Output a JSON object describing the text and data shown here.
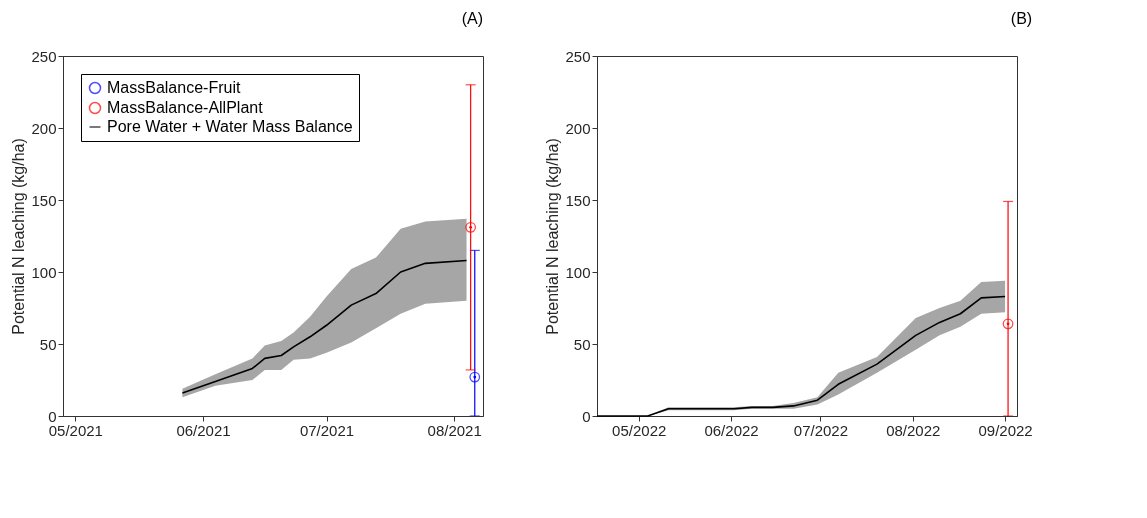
{
  "chart_data": [
    {
      "type": "line",
      "title": "(A)",
      "ylabel": "Potential N leaching (kg/ha)",
      "xlim": [
        "2021-04-28",
        "2021-08-08"
      ],
      "ylim": [
        0,
        250
      ],
      "yticks": [
        0,
        50,
        100,
        150,
        200,
        250
      ],
      "xticks": [
        {
          "value": "2021-05-01",
          "label": "05/2021"
        },
        {
          "value": "2021-06-01",
          "label": "06/2021"
        },
        {
          "value": "2021-07-01",
          "label": "07/2021"
        },
        {
          "value": "2021-08-01",
          "label": "08/2021"
        }
      ],
      "legend": "top left",
      "grid": false,
      "series": [
        {
          "name": "MassBalance-Fruit",
          "type": "scatter",
          "marker": "circle",
          "color": "#0000ff",
          "x": [
            "2021-08-06"
          ],
          "values": [
            27
          ],
          "errors": [
            [
              0,
              115
            ]
          ]
        },
        {
          "name": "MassBalance-AllPlant",
          "type": "scatter",
          "marker": "circle",
          "color": "#ff0000",
          "x": [
            "2021-08-05"
          ],
          "values": [
            131
          ],
          "errors": [
            [
              32,
              230
            ]
          ]
        },
        {
          "name": "Pore Water + Water Mass Balance",
          "color": "#000000",
          "x": [
            "2021-05-27",
            "2021-06-04",
            "2021-06-13",
            "2021-06-16",
            "2021-06-20",
            "2021-06-23",
            "2021-06-27",
            "2021-07-01",
            "2021-07-07",
            "2021-07-13",
            "2021-07-19",
            "2021-07-25",
            "2021-08-04"
          ],
          "values": [
            16,
            24,
            33,
            40,
            42,
            48,
            55,
            63,
            77,
            85,
            100,
            106,
            108
          ],
          "lower": [
            13,
            21,
            25,
            32,
            32,
            39,
            40,
            44,
            51,
            61,
            71,
            78,
            80
          ],
          "upper": [
            19,
            29,
            40,
            49,
            52,
            58,
            69,
            83,
            102,
            110,
            130,
            135,
            137
          ]
        }
      ]
    },
    {
      "type": "line",
      "title": "(B)",
      "ylabel": "Potential N leaching (kg/ha)",
      "xlim": [
        "2022-04-17",
        "2022-09-05"
      ],
      "ylim": [
        0,
        250
      ],
      "yticks": [
        0,
        50,
        100,
        150,
        200,
        250
      ],
      "xticks": [
        {
          "value": "2022-05-01",
          "label": "05/2022"
        },
        {
          "value": "2022-06-01",
          "label": "06/2022"
        },
        {
          "value": "2022-07-01",
          "label": "07/2022"
        },
        {
          "value": "2022-08-01",
          "label": "08/2022"
        },
        {
          "value": "2022-09-01",
          "label": "09/2022"
        }
      ],
      "grid": false,
      "series": [
        {
          "type": "scatter",
          "marker": "circle",
          "color": "#ff0000",
          "x": [
            "2022-09-02"
          ],
          "values": [
            64
          ],
          "errors": [
            [
              0,
              149
            ]
          ]
        },
        {
          "color": "#000000",
          "x": [
            "2022-04-17",
            "2022-05-04",
            "2022-05-11",
            "2022-06-02",
            "2022-06-08",
            "2022-06-15",
            "2022-06-22",
            "2022-06-30",
            "2022-07-07",
            "2022-07-20",
            "2022-08-02",
            "2022-08-10",
            "2022-08-17",
            "2022-08-24",
            "2022-09-01"
          ],
          "values": [
            0,
            0,
            5,
            5,
            6,
            6,
            7,
            11,
            22,
            36,
            56,
            65,
            71,
            82,
            83
          ],
          "lower": [
            0,
            0,
            4,
            4,
            5,
            5,
            5,
            8,
            15,
            30,
            46,
            56,
            62,
            71,
            72
          ],
          "upper": [
            0,
            0,
            6,
            6,
            7,
            7,
            9,
            13,
            30,
            41,
            68,
            75,
            80,
            93,
            94
          ]
        }
      ]
    }
  ]
}
